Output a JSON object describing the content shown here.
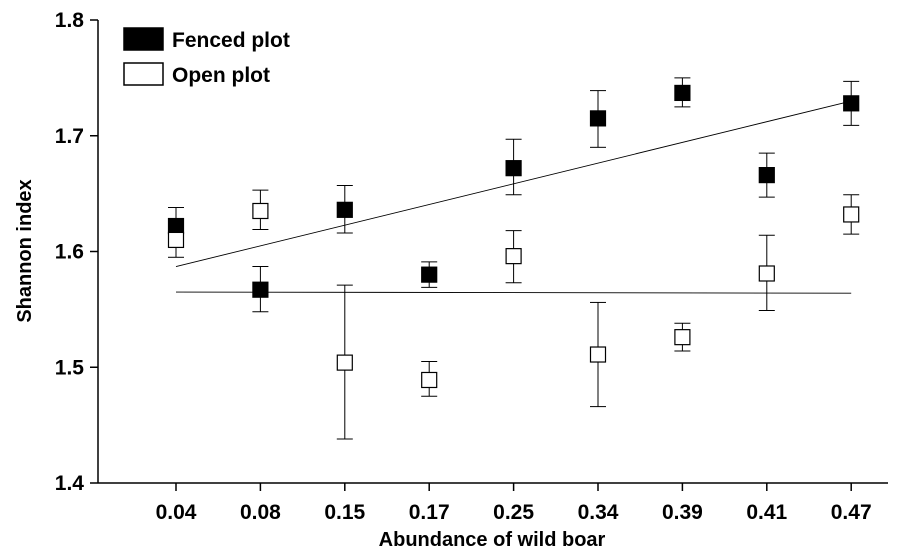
{
  "chart_data": {
    "type": "scatter",
    "xlabel": "Abundance of wild boar",
    "ylabel": "Shannon index",
    "categories": [
      "0.04",
      "0.08",
      "0.15",
      "0.17",
      "0.25",
      "0.34",
      "0.39",
      "0.41",
      "0.47"
    ],
    "ylim": [
      1.4,
      1.8
    ],
    "yticks": [
      "1.4",
      "1.5",
      "1.6",
      "1.7",
      "1.8"
    ],
    "grid": false,
    "legend_position": "top-left",
    "series": [
      {
        "name": "Fenced plot",
        "marker": "filled-square",
        "color": "#000000",
        "values": [
          1.622,
          1.567,
          1.636,
          1.58,
          1.672,
          1.715,
          1.737,
          1.666,
          1.728
        ],
        "error_low": [
          1.609,
          1.548,
          1.616,
          1.569,
          1.649,
          1.69,
          1.725,
          1.647,
          1.709
        ],
        "error_high": [
          1.638,
          1.587,
          1.657,
          1.591,
          1.697,
          1.739,
          1.75,
          1.685,
          1.747
        ],
        "trendline": {
          "start": 1.587,
          "end": 1.73
        }
      },
      {
        "name": "Open plot",
        "marker": "open-square",
        "color": "#000000",
        "values": [
          1.61,
          1.635,
          1.504,
          1.489,
          1.596,
          1.511,
          1.526,
          1.581,
          1.632
        ],
        "error_low": [
          1.595,
          1.619,
          1.438,
          1.475,
          1.573,
          1.466,
          1.514,
          1.549,
          1.615
        ],
        "error_high": [
          1.625,
          1.653,
          1.571,
          1.505,
          1.618,
          1.556,
          1.538,
          1.614,
          1.649
        ],
        "trendline": {
          "start": 1.565,
          "end": 1.564
        }
      }
    ]
  }
}
